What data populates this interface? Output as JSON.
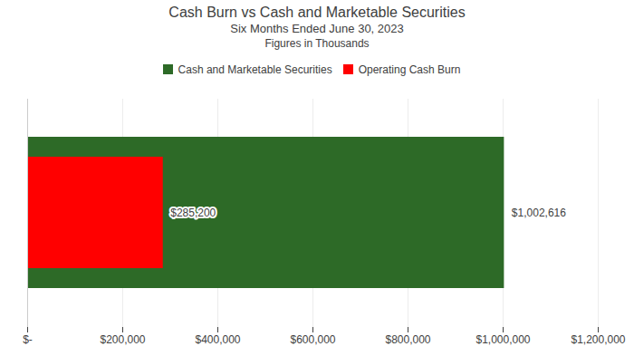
{
  "chart_data": {
    "type": "bar",
    "orientation": "horizontal",
    "title": "Cash Burn vs Cash and Marketable Securities",
    "subtitle": [
      "Six Months Ended June 30, 2023",
      "Figures in Thousands"
    ],
    "categories": [
      null
    ],
    "series": [
      {
        "name": "Cash and Marketable Securities",
        "color": "#2d6a27",
        "values": [
          1002616
        ],
        "value_labels": [
          "$1,002,616"
        ]
      },
      {
        "name": "Operating Cash Burn",
        "color": "#ff0000",
        "values": [
          285200
        ],
        "value_labels": [
          "$285,200"
        ]
      }
    ],
    "xlim": [
      0,
      1200000
    ],
    "xticks": [
      {
        "value": 0,
        "label": "$-"
      },
      {
        "value": 200000,
        "label": "$200,000"
      },
      {
        "value": 400000,
        "label": "$400,000"
      },
      {
        "value": 600000,
        "label": "$600,000"
      },
      {
        "value": 800000,
        "label": "$800,000"
      },
      {
        "value": 1000000,
        "label": "$1,000,000"
      },
      {
        "value": 1200000,
        "label": "$1,200,000"
      }
    ],
    "grid": true,
    "legend": "top",
    "data_labels": true,
    "tick_labels": "x"
  }
}
